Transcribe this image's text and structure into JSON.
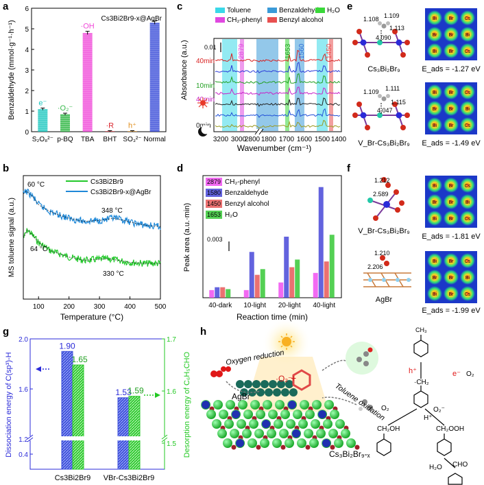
{
  "figure": {
    "panel_labels": [
      "a",
      "b",
      "c",
      "d",
      "e",
      "f",
      "g",
      "h"
    ]
  },
  "chart_data": [
    {
      "panel": "a",
      "type": "bar",
      "title": "Cs3Bi2Br9-x@AgBr",
      "ylabel": "Benzaldehyde (mmol·g⁻¹·h⁻¹)",
      "xlabel": "",
      "categories": [
        "S₂O₈²⁻",
        "p-BQ",
        "TBA",
        "BHT",
        "SO₃²⁻",
        "Normal"
      ],
      "values": [
        1.1,
        0.85,
        4.8,
        0.03,
        0.03,
        5.3
      ],
      "errors": [
        0.05,
        0.05,
        0.08,
        0.02,
        0.02,
        0.08
      ],
      "annotations": [
        "e⁻",
        "·O₂⁻",
        "·OH",
        "·R",
        "h⁺",
        ""
      ],
      "colors": [
        "#1ec8c0",
        "#36b84a",
        "#f04ad8",
        "#d9262e",
        "#e08c18",
        "#3a4cd8"
      ],
      "ylim": [
        0,
        6
      ],
      "yticks": [
        "0",
        "1",
        "2",
        "3",
        "4",
        "5",
        "6"
      ]
    },
    {
      "panel": "b",
      "type": "line",
      "xlabel": "Temperature (°C)",
      "ylabel": "MS toluene signal (a.u.)",
      "xlim": [
        50,
        500
      ],
      "xticks": [
        "100",
        "200",
        "300",
        "400",
        "500"
      ],
      "series": [
        {
          "name": "Cs3Bi2Br9",
          "color": "#22c82a",
          "x": [
            50,
            64,
            80,
            100,
            140,
            200,
            250,
            300,
            330,
            360,
            400,
            450,
            500
          ],
          "y": [
            0.58,
            0.66,
            0.61,
            0.54,
            0.46,
            0.4,
            0.37,
            0.38,
            0.385,
            0.37,
            0.35,
            0.34,
            0.34
          ]
        },
        {
          "name": "Cs3Bi2Br9-x@AgBr",
          "color": "#1e88d8",
          "x": [
            50,
            60,
            80,
            100,
            140,
            200,
            250,
            300,
            348,
            380,
            420,
            460,
            500
          ],
          "y": [
            1.0,
            1.03,
            0.98,
            0.9,
            0.83,
            0.77,
            0.74,
            0.75,
            0.77,
            0.75,
            0.72,
            0.7,
            0.69
          ]
        }
      ],
      "annotations": [
        "60 °C",
        "348 °C",
        "64 °C",
        "330 °C"
      ]
    },
    {
      "panel": "c",
      "type": "line",
      "xlabel": "Wavenumber (cm⁻¹)",
      "ylabel": "Absorbance (a.u.)",
      "legend": [
        "Toluene",
        "Benzaldehyde",
        "H₂O",
        "CH₂-phenyl",
        "Benzyl alcohol"
      ],
      "legend_colors": [
        "#3ad8e8",
        "#3a9ad8",
        "#3ad83a",
        "#e048e0",
        "#e85050"
      ],
      "xticks_left": [
        "3200",
        "3000",
        "2800"
      ],
      "xticks_right": [
        "1800",
        "1700",
        "1600",
        "1500",
        "1400"
      ],
      "peaks": [
        "2879",
        "1653",
        "1560",
        "1450"
      ],
      "scale_label": "0.01",
      "traces": [
        "40min",
        "10min",
        "40min",
        "0min"
      ]
    },
    {
      "panel": "d",
      "type": "bar",
      "xlabel": "Reaction time (min)",
      "ylabel": "Peak area (a.u.·min)",
      "categories": [
        "40-dark",
        "10-light",
        "20-light",
        "40-light"
      ],
      "scale_label": "0.003",
      "series": [
        {
          "name": "CH₂-phenyl",
          "tag": "2879",
          "color": "#f050f0",
          "values": [
            0.4,
            0.4,
            0.8,
            1.3
          ]
        },
        {
          "name": "Benzaldehyde",
          "tag": "1580",
          "color": "#4848d8",
          "values": [
            0.55,
            2.4,
            3.2,
            5.8
          ]
        },
        {
          "name": "Benzyl alcohol",
          "tag": "1450",
          "color": "#e85858",
          "values": [
            0.55,
            1.2,
            1.6,
            1.9
          ]
        },
        {
          "name": "H₂O",
          "tag": "1653",
          "color": "#36c836",
          "values": [
            0.45,
            1.5,
            2.0,
            3.3
          ]
        }
      ]
    },
    {
      "panel": "g",
      "type": "bar",
      "ylabel_left": "Dissociation energy of C(sp³)-H",
      "ylabel_right": "Desorption energy of C₆H₅CHO",
      "categories": [
        "Cs3Bi2Br9",
        "VBr-Cs3Bi2Br9"
      ],
      "series": [
        {
          "name": "Dissociation energy",
          "color": "#3c4fd8",
          "values": [
            1.9,
            1.53
          ]
        },
        {
          "name": "Desorption energy",
          "color": "#2ec82e",
          "values": [
            1.65,
            1.59
          ]
        }
      ],
      "yticks_left": [
        "0.4",
        "1.2",
        "1.6",
        "2.0"
      ],
      "yticks_right": [
        "1.5",
        "1.6",
        "1.7"
      ]
    }
  ],
  "panel_e": {
    "rows": [
      {
        "caption": "Cs₃Bi₂Br₉",
        "energy": "E_ads = -1.27 eV",
        "distances": [
          "1.108",
          "1.109",
          "1.113",
          "4.090"
        ]
      },
      {
        "caption": "V_Br-Cs₃Bi₂Br₉",
        "energy": "E_ads = -1.49 eV",
        "distances": [
          "1.109",
          "1.111",
          "1.115",
          "4.047"
        ]
      }
    ],
    "map_labels": [
      "Bi",
      "Br",
      "Cs",
      "Br",
      "Br",
      "Bi"
    ]
  },
  "panel_f": {
    "rows": [
      {
        "caption": "V_Br-Cs₃Bi₂Br₉",
        "energy": "E_ads = -1.81 eV",
        "distances": [
          "1.212",
          "2.589"
        ]
      },
      {
        "caption": "AgBr",
        "energy": "E_ads = -1.99 eV",
        "distances": [
          "1.210",
          "2.206"
        ]
      }
    ]
  },
  "panel_h": {
    "labels": [
      "Oxygen reduction",
      "AgBr",
      "Toluene oxidation",
      "Cs₃Bi₂Br₉-ₓ",
      "·O₂⁻",
      "h⁺",
      "e⁻",
      "O₂",
      "·CH₂",
      "O₂⁻",
      "H⁺",
      "CH₂OH",
      "CH₂OOH",
      "H₂O",
      "CHO",
      "CH₃"
    ]
  }
}
